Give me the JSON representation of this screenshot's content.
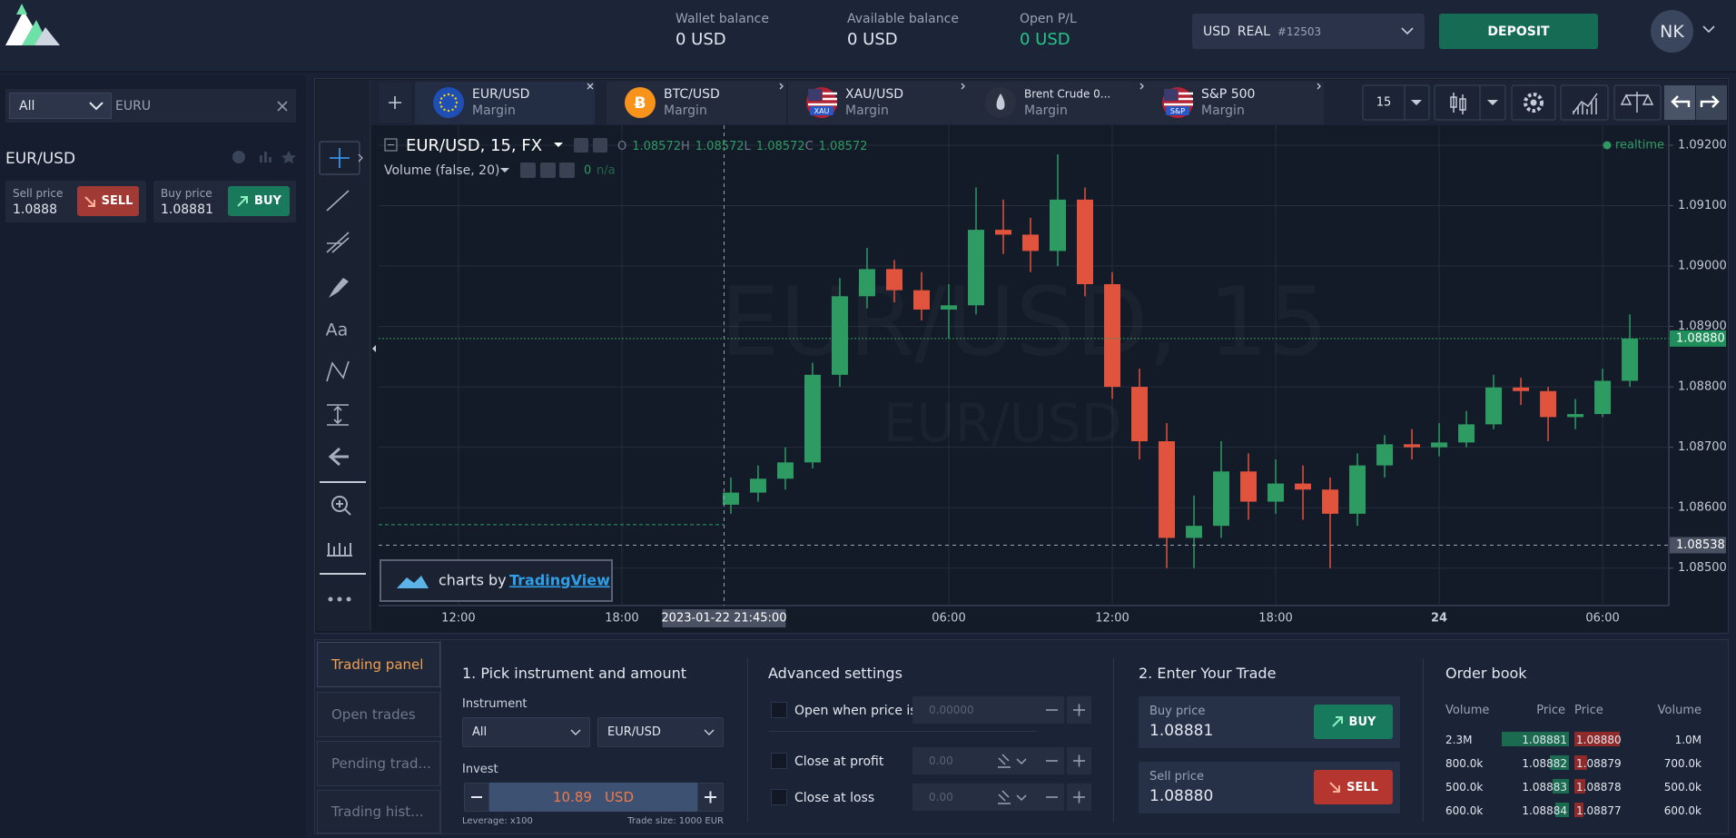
{
  "header": {
    "balances": [
      {
        "label": "Wallet balance",
        "value": "0 USD"
      },
      {
        "label": "Available balance",
        "value": "0 USD"
      },
      {
        "label": "Open P/L",
        "value": "0 USD"
      }
    ],
    "account": {
      "currency": "USD",
      "type": "REAL",
      "id": "#12503"
    },
    "deposit": "DEPOSIT",
    "avatar": "NK"
  },
  "watchlist": {
    "filter": "All",
    "search": "EURU",
    "symbol": "EUR/USD",
    "sell_label": "Sell price",
    "sell_price": "1.0888",
    "sell_button": "SELL",
    "buy_label": "Buy price",
    "buy_price": "1.08881",
    "buy_button": "BUY"
  },
  "toolbar": {
    "text_tool": "Aa"
  },
  "tabs": [
    {
      "name": "EUR/USD",
      "sub": "Margin"
    },
    {
      "name": "BTC/USD",
      "sub": "Margin"
    },
    {
      "name": "XAU/USD",
      "sub": "Margin",
      "badge": "XAU"
    },
    {
      "name": "Brent Crude 0...",
      "sub": "Margin"
    },
    {
      "name": "S&P 500",
      "sub": "Margin",
      "badge": "S&P"
    }
  ],
  "interval": "15",
  "chart_data": {
    "type": "candlestick",
    "title": "EUR/USD, 15, FX",
    "ohlc_legend": [
      {
        "key": "O",
        "value": "1.08572"
      },
      {
        "key": "H",
        "value": "1.08572"
      },
      {
        "key": "L",
        "value": "1.08572"
      },
      {
        "key": "C",
        "value": "1.08572"
      }
    ],
    "volume_study": "Volume (false, 20)",
    "volume_value": "0",
    "volume_na": "n/a",
    "status": "realtime",
    "watermark": "EUR/USD, 15",
    "watermark_sub": "EUR/USD",
    "credit": "charts by",
    "credit_brand": "TradingView",
    "x": [
      22,
      23,
      24,
      25,
      26,
      27,
      28,
      29,
      30,
      31,
      32,
      33,
      34,
      35,
      36,
      37,
      38,
      39,
      40,
      41,
      42,
      43,
      44,
      45,
      46,
      47,
      48,
      49,
      50,
      51,
      52,
      53,
      54,
      55
    ],
    "open": [
      1.08605,
      1.08625,
      1.08648,
      1.08675,
      1.0882,
      1.0895,
      1.08995,
      1.0896,
      1.08928,
      1.08935,
      1.0906,
      1.09052,
      1.09025,
      1.0911,
      1.0897,
      1.088,
      1.0871,
      1.0855,
      1.0857,
      1.0866,
      1.0861,
      1.0864,
      1.0863,
      1.0859,
      1.0867,
      1.08705,
      1.087,
      1.08708,
      1.08738,
      1.08799,
      1.08793,
      1.0875,
      1.08755,
      1.0881
    ],
    "high": [
      1.0865,
      1.0867,
      1.087,
      1.0884,
      1.0898,
      1.0903,
      1.0901,
      1.0899,
      1.0897,
      1.0913,
      1.0911,
      1.0908,
      1.09185,
      1.0913,
      1.0899,
      1.0883,
      1.0874,
      1.0862,
      1.0871,
      1.0869,
      1.0868,
      1.0867,
      1.0865,
      1.0869,
      1.0872,
      1.0873,
      1.0874,
      1.0876,
      1.0882,
      1.08815,
      1.088,
      1.0878,
      1.0883,
      1.0892
    ],
    "low": [
      1.0859,
      1.0861,
      1.0863,
      1.08665,
      1.088,
      1.0893,
      1.0894,
      1.0891,
      1.0888,
      1.0892,
      1.0902,
      1.0899,
      1.09,
      1.0895,
      1.0878,
      1.0868,
      1.085,
      1.085,
      1.0855,
      1.0858,
      1.0859,
      1.0858,
      1.085,
      1.0857,
      1.0865,
      1.0868,
      1.08685,
      1.087,
      1.0873,
      1.0877,
      1.0871,
      1.0873,
      1.0875,
      1.088
    ],
    "close": [
      1.08625,
      1.08648,
      1.08675,
      1.0882,
      1.0895,
      1.08995,
      1.0896,
      1.08928,
      1.08935,
      1.0906,
      1.09052,
      1.09025,
      1.0911,
      1.0897,
      1.088,
      1.0871,
      1.0855,
      1.0857,
      1.0866,
      1.0861,
      1.0864,
      1.0863,
      1.0859,
      1.0867,
      1.08705,
      1.087,
      1.08708,
      1.08738,
      1.08799,
      1.08793,
      1.0875,
      1.08755,
      1.0881,
      1.0888
    ],
    "up_color": "#2e9b62",
    "down_color": "#e0533d",
    "xlim": [
      9.07,
      56.43
    ],
    "ylim": [
      1.08438,
      1.09233
    ],
    "xticks": [
      {
        "value": 12,
        "label": "12:00"
      },
      {
        "value": 18,
        "label": "18:00"
      },
      {
        "value": 30,
        "label": "06:00"
      },
      {
        "value": 36,
        "label": "12:00"
      },
      {
        "value": 42,
        "label": "18:00"
      },
      {
        "value": 48,
        "label": "24"
      },
      {
        "value": 54,
        "label": "06:00"
      }
    ],
    "yticks": [
      {
        "value": 1.085,
        "label": "1.08500"
      },
      {
        "value": 1.086,
        "label": "1.08600"
      },
      {
        "value": 1.087,
        "label": "1.08700"
      },
      {
        "value": 1.088,
        "label": "1.08800"
      },
      {
        "value": 1.089,
        "label": "1.08900"
      },
      {
        "value": 1.09,
        "label": "1.09000"
      },
      {
        "value": 1.091,
        "label": "1.09100"
      },
      {
        "value": 1.092,
        "label": "1.09200"
      }
    ],
    "grid": true,
    "last_price": {
      "value": 1.0888,
      "label": "1.08880"
    },
    "crosshair_price": {
      "value": 1.08538,
      "label": "1.08538"
    },
    "crosshair_time": {
      "value": 21.75,
      "label": "2023-01-22 21:45:00"
    }
  },
  "panel": {
    "tabs": [
      "Trading panel",
      "Open trades",
      "Pending trad...",
      "Trading hist..."
    ],
    "pick": {
      "title": "1. Pick instrument and amount",
      "instrument_label": "Instrument",
      "instrument_group": "All",
      "instrument": "EUR/USD",
      "invest_label": "Invest",
      "invest_amount": "10.89",
      "invest_currency": "USD",
      "leverage": "Leverage: x100",
      "trade_size": "Trade size: 1000 EUR"
    },
    "advanced": {
      "title": "Advanced settings",
      "rows": [
        {
          "label": "Open when price is",
          "placeholder": "0.00000"
        },
        {
          "label": "Close at profit",
          "placeholder": "0.00"
        },
        {
          "label": "Close at loss",
          "placeholder": "0.00"
        }
      ]
    },
    "trade": {
      "title": "2. Enter Your Trade",
      "buy_label": "Buy price",
      "buy_price": "1.08881",
      "buy_button": "BUY",
      "sell_label": "Sell price",
      "sell_price": "1.08880",
      "sell_button": "SELL"
    },
    "order_book": {
      "title": "Order book",
      "headers": [
        "Volume",
        "Price",
        "Price",
        "Volume"
      ],
      "rows": [
        [
          "2.3M",
          "1.08881",
          "1.08880",
          "1.0M"
        ],
        [
          "800.0k",
          "1.08882",
          "1.08879",
          "700.0k"
        ],
        [
          "500.0k",
          "1.08883",
          "1.08878",
          "500.0k"
        ],
        [
          "600.0k",
          "1.08884",
          "1.08877",
          "600.0k"
        ]
      ]
    }
  }
}
